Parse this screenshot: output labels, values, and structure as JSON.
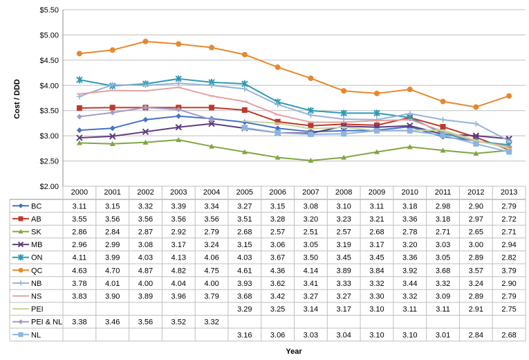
{
  "chart_data": {
    "type": "line",
    "title": "",
    "xlabel": "Year",
    "ylabel": "Cost / DDD",
    "ylim": [
      2.0,
      5.5
    ],
    "y_ticks": [
      "$2.00",
      "$2.50",
      "$3.00",
      "$3.50",
      "$4.00",
      "$4.50",
      "$5.00",
      "$5.50"
    ],
    "y_tick_values": [
      2.0,
      2.5,
      3.0,
      3.5,
      4.0,
      4.5,
      5.0,
      5.5
    ],
    "grid": true,
    "legend": "data-table-below",
    "categories": [
      "2000",
      "2001",
      "2002",
      "2003",
      "2004",
      "2005",
      "2006",
      "2007",
      "2008",
      "2009",
      "2010",
      "2011",
      "2012",
      "2013"
    ],
    "series": [
      {
        "name": "BC",
        "color": "#4472C4",
        "marker": "diamond",
        "values": [
          3.11,
          3.15,
          3.32,
          3.39,
          3.34,
          3.27,
          3.15,
          3.08,
          3.1,
          3.11,
          3.18,
          2.98,
          2.9,
          2.79
        ]
      },
      {
        "name": "AB",
        "color": "#C0392B",
        "marker": "square",
        "values": [
          3.55,
          3.56,
          3.56,
          3.56,
          3.56,
          3.51,
          3.28,
          3.2,
          3.23,
          3.21,
          3.36,
          3.18,
          2.97,
          2.72
        ]
      },
      {
        "name": "SK",
        "color": "#7FA641",
        "marker": "triangle",
        "values": [
          2.86,
          2.84,
          2.87,
          2.92,
          2.79,
          2.68,
          2.57,
          2.51,
          2.57,
          2.68,
          2.78,
          2.71,
          2.65,
          2.71
        ]
      },
      {
        "name": "MB",
        "color": "#5E3B7E",
        "marker": "x",
        "values": [
          2.96,
          2.99,
          3.08,
          3.17,
          3.24,
          3.15,
          3.06,
          3.05,
          3.19,
          3.17,
          3.2,
          3.03,
          3.0,
          2.94
        ]
      },
      {
        "name": "ON",
        "color": "#2E9AB4",
        "marker": "star",
        "values": [
          4.11,
          3.99,
          4.03,
          4.13,
          4.06,
          4.03,
          3.67,
          3.5,
          3.45,
          3.45,
          3.36,
          3.05,
          2.89,
          2.82
        ]
      },
      {
        "name": "QC",
        "color": "#E8872E",
        "marker": "circle",
        "values": [
          4.63,
          4.7,
          4.87,
          4.82,
          4.75,
          4.61,
          4.36,
          4.14,
          3.89,
          3.84,
          3.92,
          3.68,
          3.57,
          3.79
        ]
      },
      {
        "name": "NB",
        "color": "#95B3D7",
        "marker": "plus",
        "values": [
          3.78,
          4.01,
          4.0,
          4.04,
          4.0,
          3.93,
          3.62,
          3.41,
          3.33,
          3.32,
          3.44,
          3.32,
          3.24,
          2.9
        ]
      },
      {
        "name": "NS",
        "color": "#E6A0A0",
        "marker": "dash",
        "values": [
          3.83,
          3.9,
          3.89,
          3.96,
          3.79,
          3.68,
          3.42,
          3.27,
          3.27,
          3.3,
          3.32,
          3.09,
          2.89,
          2.79
        ]
      },
      {
        "name": "PEI",
        "color": "#C4D79B",
        "marker": "dash",
        "values": [
          null,
          null,
          null,
          null,
          null,
          3.29,
          3.25,
          3.14,
          3.17,
          3.1,
          3.11,
          3.11,
          2.91,
          2.75
        ]
      },
      {
        "name": "PEI & NL",
        "color": "#A39BC9",
        "marker": "diamond",
        "values": [
          3.38,
          3.46,
          3.56,
          3.52,
          3.32,
          null,
          null,
          null,
          null,
          null,
          null,
          null,
          null,
          null
        ]
      },
      {
        "name": "NL",
        "color": "#8DB4E2",
        "marker": "square",
        "values": [
          null,
          null,
          null,
          null,
          null,
          3.16,
          3.06,
          3.03,
          3.04,
          3.1,
          3.1,
          3.01,
          2.84,
          2.68
        ]
      }
    ]
  }
}
